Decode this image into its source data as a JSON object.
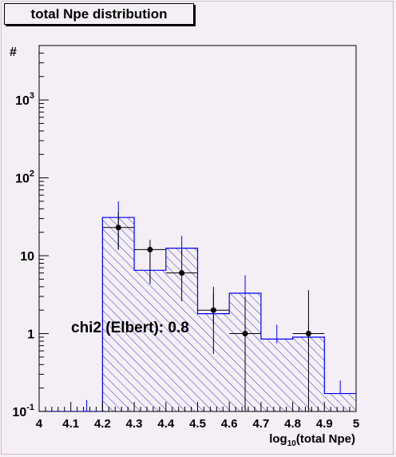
{
  "chart_data": {
    "type": "bar",
    "title": "total Npe distribution",
    "xlabel": {
      "prefix": "log",
      "subscript": "10",
      "suffix": "(total Npe)"
    },
    "ylabel": "#",
    "xlim": [
      4.0,
      5.0
    ],
    "ylim": [
      0.1,
      5000
    ],
    "y_scale": "log",
    "x_ticks": [
      "4",
      "4.1",
      "4.2",
      "4.3",
      "4.4",
      "4.5",
      "4.6",
      "4.7",
      "4.8",
      "4.9",
      "5"
    ],
    "y_ticks": [
      {
        "value": 0.1,
        "base": "10",
        "exp": "-1"
      },
      {
        "value": 1,
        "base": "1",
        "exp": ""
      },
      {
        "value": 10,
        "base": "10",
        "exp": ""
      },
      {
        "value": 100,
        "base": "10",
        "exp": "2"
      },
      {
        "value": 1000,
        "base": "10",
        "exp": "3"
      }
    ],
    "bin_edges": [
      4.0,
      4.1,
      4.2,
      4.3,
      4.4,
      4.5,
      4.6,
      4.7,
      4.8,
      4.9,
      5.0
    ],
    "histogram": {
      "color": "#0000ff",
      "fill": "hatched",
      "values": [
        0.1,
        0.1,
        31,
        6.5,
        12.5,
        1.8,
        3.3,
        0.85,
        0.9,
        0.17
      ],
      "errors_low": [
        0.1,
        0.1,
        12,
        4.3,
        10.5,
        1.3,
        3.1,
        0.75,
        0.7,
        0.17
      ],
      "errors_high": [
        0.1,
        0.14,
        50,
        11,
        18,
        3.3,
        5.6,
        1.3,
        1.3,
        0.25
      ]
    },
    "data_points": {
      "color": "#000000",
      "x": [
        4.25,
        4.35,
        4.45,
        4.55,
        4.65,
        4.85
      ],
      "y": [
        23,
        12,
        6,
        2,
        1,
        1
      ],
      "y_low": [
        12,
        4.5,
        2.6,
        0.55,
        0.1,
        0.1
      ],
      "y_high": [
        36,
        16,
        12,
        4,
        3,
        3.6
      ],
      "x_err": 0.05
    },
    "annotation": "chi2 (Elbert): 0.8"
  }
}
